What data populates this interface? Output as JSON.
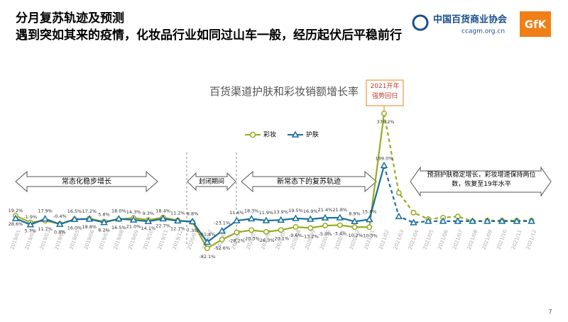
{
  "header": {
    "title": "分月复苏轨迹及预测",
    "subtitle": "遇到突如其来的疫情，化妆品行业如同过山车一般，经历起伏后平稳前行",
    "logo_text": "中国百货商业协会",
    "logo_url": "ccagm.org.cn",
    "logo_brand": "GfK"
  },
  "page_number": "7",
  "chart_data": {
    "type": "line",
    "title": "百货渠道护肤和彩妆销额增长率",
    "categories": [
      "2019/01",
      "2019/02",
      "2019/03",
      "2019/04",
      "2019/05",
      "2019/06",
      "2019/07",
      "2019/08",
      "2019/09",
      "2019/10",
      "2019/11",
      "2019/12",
      "2020/01",
      "2020/02",
      "2020/03",
      "2020/04",
      "2020/05",
      "2020/06",
      "2020/07",
      "2020/08",
      "2020/09",
      "2020/10",
      "2020/11",
      "2020/12",
      "2021/01",
      "2021/02",
      "2021/03",
      "2021/04",
      "2021/05",
      "2021/06",
      "2021/07",
      "2021/08",
      "2021/09",
      "2021/10",
      "2021/11",
      "2021/12"
    ],
    "forecast_start": "2021/03",
    "ylim": [
      -100,
      400
    ],
    "legend": "top",
    "series": [
      {
        "name": "彩妆",
        "color": "#9aab1e",
        "marker": "circle",
        "values": [
          28.6,
          5.7,
          11.7,
          0.8,
          16.0,
          18.8,
          8.2,
          16.5,
          21.0,
          14.1,
          22.7,
          12.7,
          7.3,
          -82.1,
          -52.6,
          -28.2,
          -20.3,
          -26.3,
          -20.1,
          -9.6,
          -13.2,
          -5.0,
          -3.4,
          -10.2,
          -10.3,
          376.2,
          106,
          39,
          17,
          22,
          26,
          10,
          12,
          12,
          12,
          12
        ],
        "value_labels": [
          "28.6%",
          "5.7%",
          "11.7%",
          "0.8%",
          "16.0%",
          "18.8%",
          "8.2%",
          "16.5%",
          "21.0%",
          "14.1%",
          "22.7%",
          "12.7%",
          "7.3%",
          "-82.1%",
          "-52.6%",
          "-28.2%",
          "-20.3%",
          "-26.3%",
          "-20.1%",
          "-9.6%",
          "-13.2%",
          "-5.0%",
          "-3.4%",
          "-10.2%",
          "-10.3%",
          "376.2%",
          null,
          null,
          null,
          null,
          null,
          null,
          null,
          null,
          null,
          null
        ]
      },
      {
        "name": "护肤",
        "color": "#1a6e9e",
        "marker": "triangle",
        "values": [
          19.2,
          -1.9,
          17.9,
          -0.4,
          16.5,
          17.2,
          5.8,
          18.0,
          14.3,
          9.3,
          18.4,
          11.2,
          8.8,
          -61.4,
          -23.1,
          11.6,
          18.3,
          11.9,
          13.9,
          19.5,
          16.9,
          21.4,
          21.8,
          8.9,
          15.8,
          199.0,
          26,
          5,
          10,
          10,
          10,
          10,
          10,
          10,
          10,
          10
        ],
        "value_labels": [
          "19.2%",
          "-1.9%",
          "17.9%",
          "-0.4%",
          "16.5%",
          "17.2%",
          "5.8%",
          "18.0%",
          "14.3%",
          "9.3%",
          "18.4%",
          "11.2%",
          "8.8%",
          "-61.4%",
          "-23.1%",
          "11.6%",
          "18.3%",
          "11.9%",
          "13.9%",
          "19.5%",
          "16.9%",
          "21.4%",
          "21.8%",
          "8.9%",
          "15.8%",
          "199.0%",
          null,
          null,
          null,
          null,
          null,
          null,
          null,
          null,
          null,
          null
        ]
      }
    ],
    "annotations": [
      "常态化稳步增长",
      "封闭期间",
      "新常态下的复苏轨迹",
      "预测护肤稳定增长，彩妆增速保持两位数，恢复至19年水平",
      "2021开年强势回归"
    ]
  }
}
